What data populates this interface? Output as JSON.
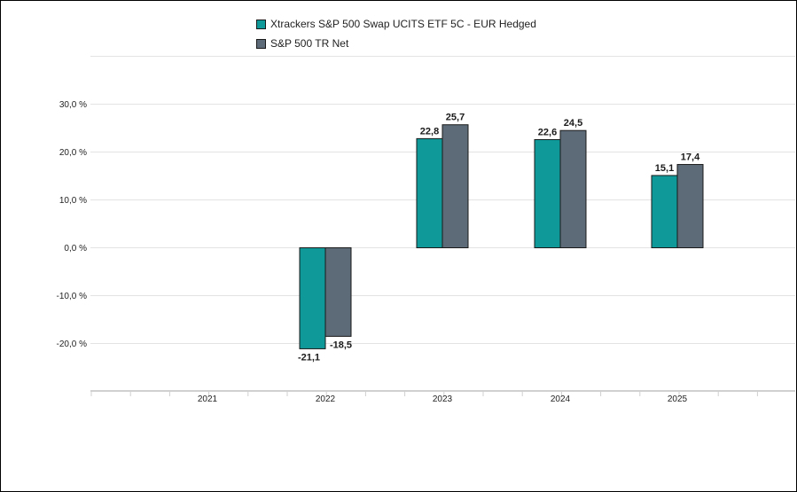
{
  "chart_data": {
    "type": "bar",
    "categories": [
      "2021",
      "2022",
      "2023",
      "2024",
      "2025"
    ],
    "series": [
      {
        "name": "Xtrackers S&P 500 Swap UCITS ETF 5C - EUR Hedged",
        "color": "#0f9a99",
        "values": [
          null,
          -21.1,
          22.8,
          22.6,
          15.1
        ],
        "labels": [
          "",
          "-21,1",
          "22,8",
          "22,6",
          "15,1"
        ]
      },
      {
        "name": "S&P 500 TR Net",
        "color": "#5c6b77",
        "values": [
          null,
          -18.5,
          25.7,
          24.5,
          17.4
        ],
        "labels": [
          "",
          "-18,5",
          "25,7",
          "24,5",
          "17,4"
        ]
      }
    ],
    "y_ticks": [
      30,
      20,
      10,
      0,
      -10,
      -20
    ],
    "y_tick_labels": [
      "30,0 %",
      "20,0 %",
      "10,0 %",
      "0,0 %",
      "-10,0 %",
      "-20,0 %"
    ],
    "ylim": [
      -30,
      40
    ],
    "grid": true,
    "legend_position": "top-center"
  }
}
